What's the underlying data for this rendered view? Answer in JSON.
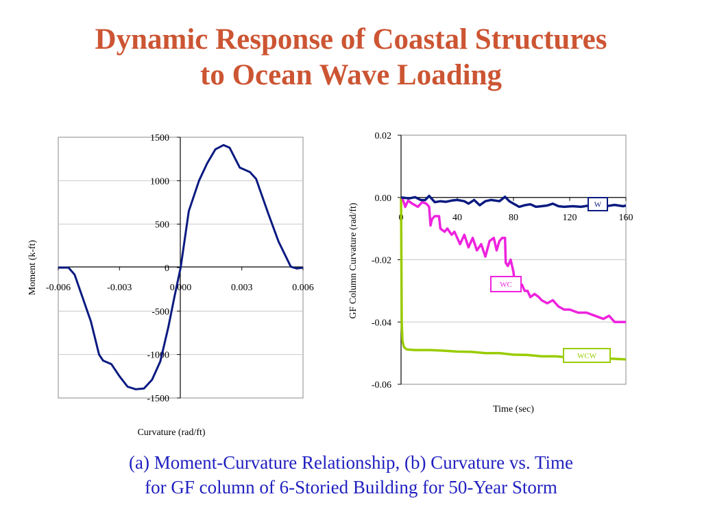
{
  "slide": {
    "title_line1": "Dynamic Response of Coastal Structures",
    "title_line2": "to Ocean Wave Loading",
    "caption_line1": "(a) Moment-Curvature Relationship, (b) Curvature vs. Time",
    "caption_line2": "for GF column of 6-Storied Building for 50-Year Storm",
    "title_color": "#cc5533",
    "caption_color": "#2020c0"
  },
  "chart_data": [
    {
      "type": "line",
      "xlabel": "Curvature (rad/ft)",
      "ylabel": "Moment (k-ft)",
      "xlim": [
        -0.006,
        0.006
      ],
      "ylim": [
        -1500,
        1500
      ],
      "x_ticks": [
        -0.006,
        -0.003,
        0.0,
        0.003,
        0.006
      ],
      "x_tick_labels": [
        "-0.006",
        "-0.003",
        "0.000",
        "0.003",
        "0.006"
      ],
      "y_ticks": [
        1500,
        1000,
        500,
        0,
        -500,
        -1000,
        -1500
      ],
      "y_tick_labels": [
        "1500",
        "1000",
        "500",
        "0",
        "-500",
        "-1000",
        "-1500"
      ],
      "grid": "horizontal",
      "series": [
        {
          "color": "#0a1a80",
          "points": [
            [
              -0.006,
              0
            ],
            [
              -0.0055,
              0
            ],
            [
              -0.0052,
              -80
            ],
            [
              -0.0048,
              -350
            ],
            [
              -0.0044,
              -620
            ],
            [
              -0.004,
              -1000
            ],
            [
              -0.0038,
              -1070
            ],
            [
              -0.0034,
              -1110
            ],
            [
              -0.003,
              -1250
            ],
            [
              -0.0026,
              -1370
            ],
            [
              -0.0022,
              -1400
            ],
            [
              -0.0018,
              -1390
            ],
            [
              -0.0014,
              -1290
            ],
            [
              -0.001,
              -1080
            ],
            [
              -0.0006,
              -680
            ],
            [
              -0.0003,
              -330
            ],
            [
              0,
              0
            ],
            [
              0.0004,
              650
            ],
            [
              0.0009,
              1000
            ],
            [
              0.0013,
              1200
            ],
            [
              0.0017,
              1360
            ],
            [
              0.0021,
              1410
            ],
            [
              0.0024,
              1380
            ],
            [
              0.0029,
              1150
            ],
            [
              0.0034,
              1100
            ],
            [
              0.0037,
              1020
            ],
            [
              0.0043,
              620
            ],
            [
              0.0048,
              300
            ],
            [
              0.0054,
              10
            ],
            [
              0.0057,
              -10
            ],
            [
              0.006,
              0
            ]
          ]
        }
      ]
    },
    {
      "type": "line",
      "xlabel": "Time (sec)",
      "ylabel": "GF Column Curvature (rad/ft)",
      "xlim": [
        0,
        160
      ],
      "ylim": [
        -0.06,
        0.02
      ],
      "x_ticks": [
        0,
        40,
        80,
        120,
        160
      ],
      "x_tick_labels": [
        "0",
        "40",
        "80",
        "120",
        "160"
      ],
      "y_ticks": [
        0.02,
        0.0,
        -0.02,
        -0.04,
        -0.06
      ],
      "y_tick_labels": [
        "0.02",
        "0.00",
        "-0.02",
        "-0.04",
        "-0.06"
      ],
      "grid": "horizontal",
      "series": [
        {
          "name": "W",
          "color": "#0a1a80",
          "points": [
            [
              0,
              0
            ],
            [
              6,
              -0.0003
            ],
            [
              10,
              0.0001
            ],
            [
              14,
              -0.0008
            ],
            [
              17,
              -0.0009
            ],
            [
              20,
              0.0005
            ],
            [
              24,
              -0.0015
            ],
            [
              28,
              -0.0012
            ],
            [
              32,
              -0.0014
            ],
            [
              36,
              -0.001
            ],
            [
              40,
              -0.0008
            ],
            [
              45,
              -0.0012
            ],
            [
              48,
              -0.002
            ],
            [
              52,
              -0.0008
            ],
            [
              56,
              -0.0025
            ],
            [
              60,
              -0.0012
            ],
            [
              64,
              -0.0008
            ],
            [
              70,
              -0.0012
            ],
            [
              74,
              0.0002
            ],
            [
              77,
              -0.0012
            ],
            [
              80,
              -0.002
            ],
            [
              84,
              -0.003
            ],
            [
              88,
              -0.0025
            ],
            [
              92,
              -0.0022
            ],
            [
              96,
              -0.003
            ],
            [
              100,
              -0.0028
            ],
            [
              104,
              -0.0026
            ],
            [
              108,
              -0.002
            ],
            [
              112,
              -0.0028
            ],
            [
              116,
              -0.003
            ],
            [
              122,
              -0.0028
            ],
            [
              128,
              -0.003
            ],
            [
              134,
              -0.0026
            ],
            [
              140,
              -0.0028
            ],
            [
              146,
              -0.0028
            ],
            [
              152,
              -0.0024
            ],
            [
              158,
              -0.0028
            ],
            [
              160,
              -0.0026
            ]
          ]
        },
        {
          "name": "WC",
          "color": "#ee22dd",
          "points": [
            [
              0,
              0
            ],
            [
              1,
              -0.0002
            ],
            [
              3,
              -0.003
            ],
            [
              5,
              -0.001
            ],
            [
              8,
              -0.002
            ],
            [
              12,
              -0.003
            ],
            [
              15,
              -0.0015
            ],
            [
              18,
              -0.002
            ],
            [
              20,
              -0.003
            ],
            [
              21,
              -0.009
            ],
            [
              22,
              -0.007
            ],
            [
              24,
              -0.006
            ],
            [
              27,
              -0.006
            ],
            [
              28,
              -0.01
            ],
            [
              31,
              -0.011
            ],
            [
              33,
              -0.01
            ],
            [
              36,
              -0.012
            ],
            [
              38,
              -0.011
            ],
            [
              40,
              -0.013
            ],
            [
              42,
              -0.015
            ],
            [
              45,
              -0.012
            ],
            [
              48,
              -0.016
            ],
            [
              51,
              -0.013
            ],
            [
              54,
              -0.017
            ],
            [
              57,
              -0.015
            ],
            [
              60,
              -0.019
            ],
            [
              63,
              -0.014
            ],
            [
              66,
              -0.013
            ],
            [
              68,
              -0.017
            ],
            [
              70,
              -0.014
            ],
            [
              72,
              -0.013
            ],
            [
              74,
              -0.013
            ],
            [
              74.5,
              -0.021
            ],
            [
              76,
              -0.022
            ],
            [
              78,
              -0.02
            ],
            [
              80,
              -0.024
            ],
            [
              81,
              -0.028
            ],
            [
              83,
              -0.03
            ],
            [
              86,
              -0.028
            ],
            [
              88,
              -0.03
            ],
            [
              90,
              -0.03
            ],
            [
              92,
              -0.032
            ],
            [
              95,
              -0.031
            ],
            [
              98,
              -0.032
            ],
            [
              100,
              -0.033
            ],
            [
              104,
              -0.034
            ],
            [
              108,
              -0.033
            ],
            [
              112,
              -0.035
            ],
            [
              116,
              -0.036
            ],
            [
              120,
              -0.036
            ],
            [
              126,
              -0.037
            ],
            [
              132,
              -0.037
            ],
            [
              138,
              -0.038
            ],
            [
              144,
              -0.039
            ],
            [
              148,
              -0.038
            ],
            [
              152,
              -0.04
            ],
            [
              156,
              -0.04
            ],
            [
              160,
              -0.04
            ]
          ]
        },
        {
          "name": "WCW",
          "color": "#99cc00",
          "points": [
            [
              0,
              0
            ],
            [
              0.5,
              -0.04
            ],
            [
              1,
              -0.046
            ],
            [
              2,
              -0.048
            ],
            [
              4,
              -0.0488
            ],
            [
              10,
              -0.049
            ],
            [
              20,
              -0.049
            ],
            [
              30,
              -0.0492
            ],
            [
              40,
              -0.0495
            ],
            [
              50,
              -0.0496
            ],
            [
              60,
              -0.05
            ],
            [
              70,
              -0.05
            ],
            [
              80,
              -0.0505
            ],
            [
              90,
              -0.0506
            ],
            [
              100,
              -0.051
            ],
            [
              110,
              -0.051
            ],
            [
              120,
              -0.0514
            ],
            [
              130,
              -0.0515
            ],
            [
              140,
              -0.0518
            ],
            [
              150,
              -0.0518
            ],
            [
              160,
              -0.052
            ]
          ]
        }
      ],
      "legend_boxes": [
        {
          "series": "W",
          "label": "W"
        },
        {
          "series": "WC",
          "label": "WC"
        },
        {
          "series": "WCW",
          "label": "WCW"
        }
      ]
    }
  ]
}
